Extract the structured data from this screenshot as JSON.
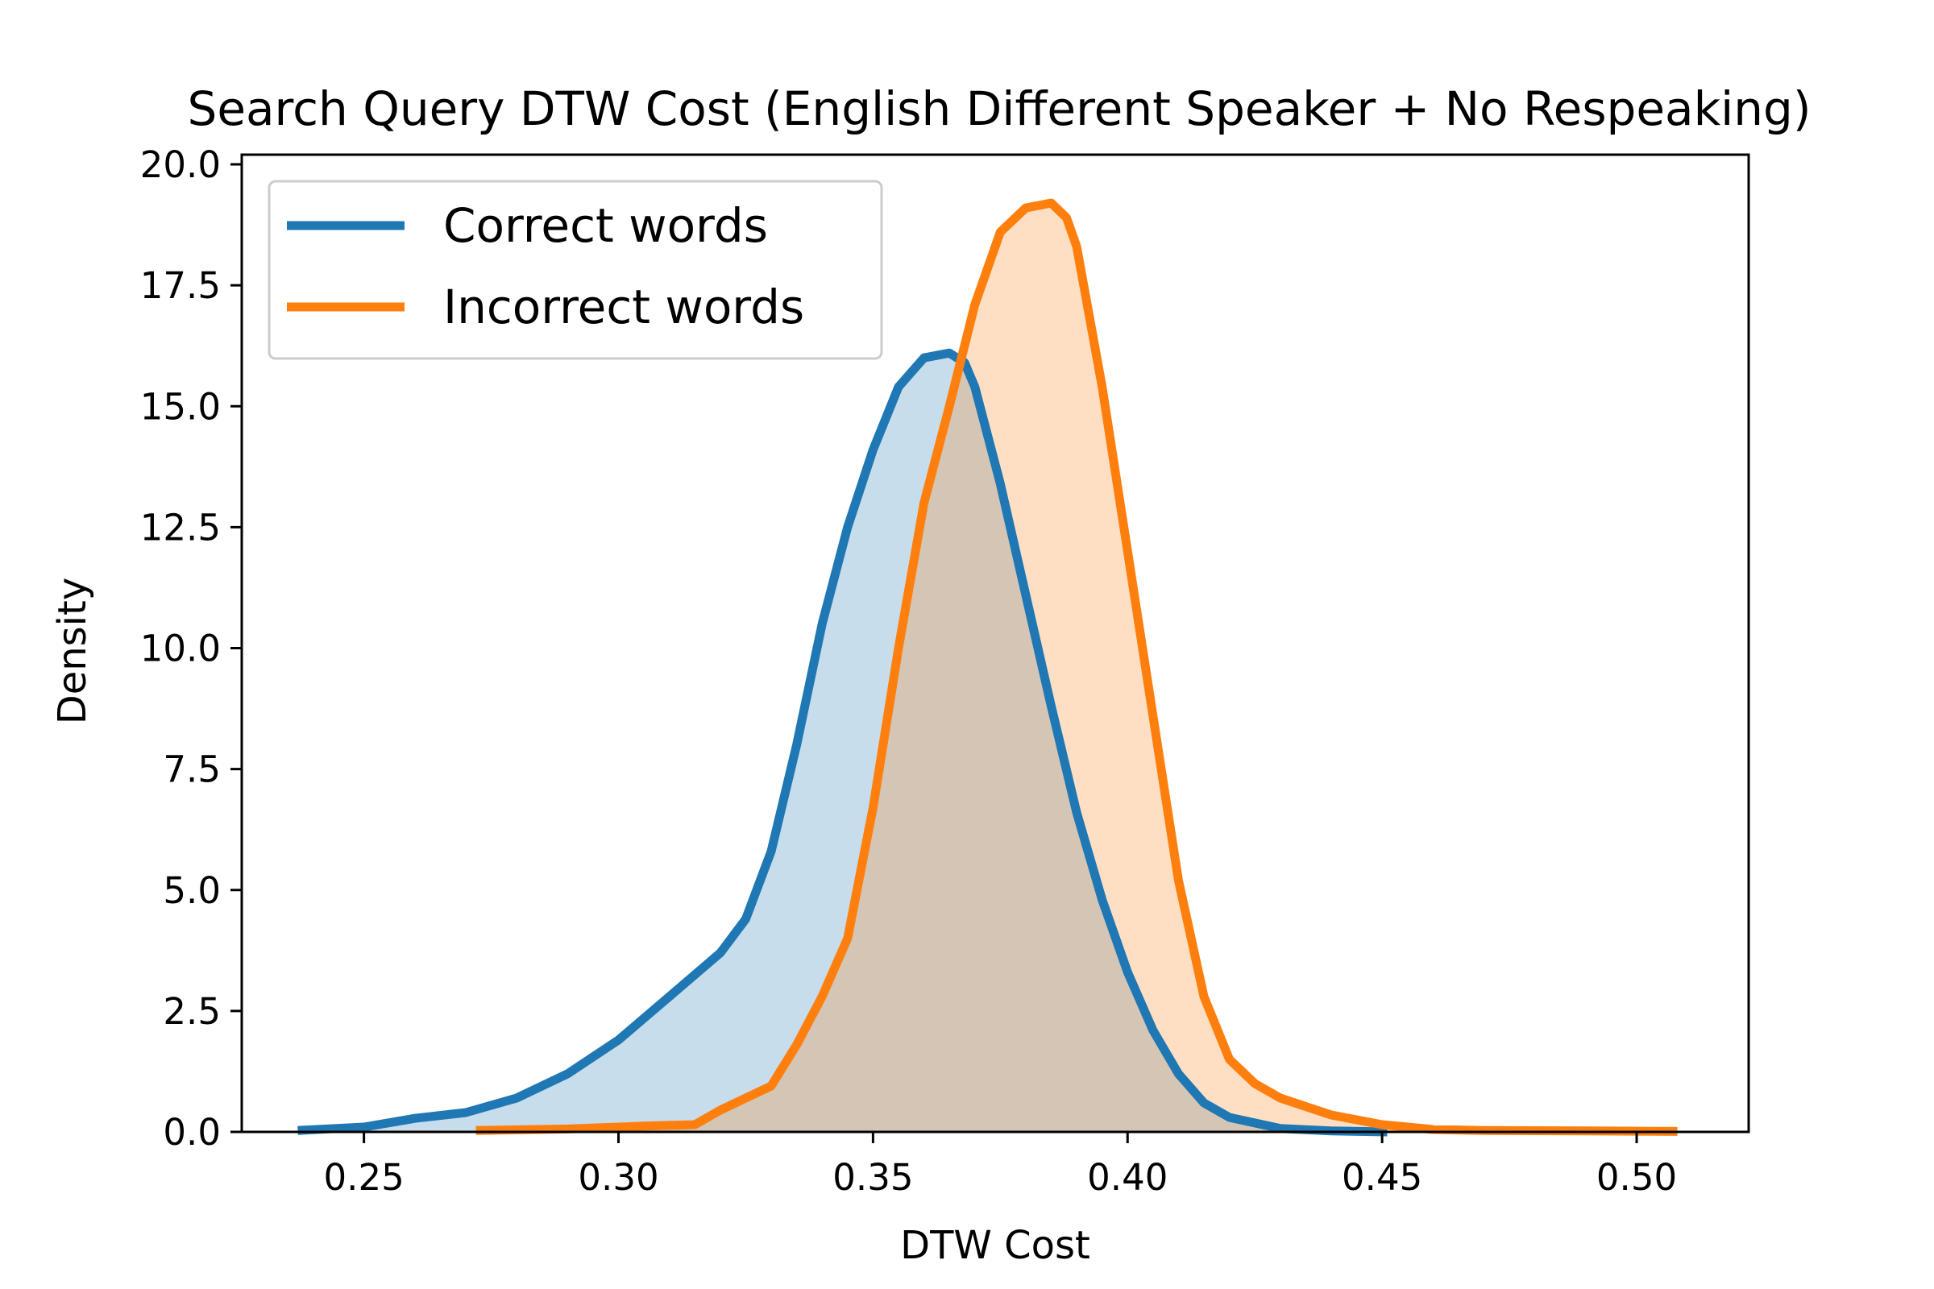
{
  "chart_data": {
    "type": "area",
    "title": "Search Query DTW Cost (English Different Speaker + No Respeaking)",
    "xlabel": "DTW Cost",
    "ylabel": "Density",
    "xlim": [
      0.226,
      0.522
    ],
    "ylim": [
      0,
      20.2
    ],
    "xticks": [
      0.25,
      0.3,
      0.35,
      0.4,
      0.45,
      0.5
    ],
    "xtick_labels": [
      "0.25",
      "0.30",
      "0.35",
      "0.40",
      "0.45",
      "0.50"
    ],
    "yticks": [
      0,
      2.5,
      5,
      7.5,
      10,
      12.5,
      15,
      17.5,
      20
    ],
    "ytick_labels": [
      "0.0",
      "2.5",
      "5.0",
      "7.5",
      "10.0",
      "12.5",
      "15.0",
      "17.5",
      "20.0"
    ],
    "grid": false,
    "legend_position": "top-left",
    "series": [
      {
        "name": "Correct words",
        "color": "#1f77b4",
        "x": [
          0.237,
          0.25,
          0.26,
          0.27,
          0.28,
          0.29,
          0.3,
          0.31,
          0.32,
          0.325,
          0.33,
          0.335,
          0.34,
          0.345,
          0.35,
          0.355,
          0.36,
          0.365,
          0.368,
          0.37,
          0.375,
          0.38,
          0.385,
          0.39,
          0.395,
          0.4,
          0.405,
          0.41,
          0.415,
          0.42,
          0.43,
          0.44,
          0.451
        ],
        "y": [
          0.03,
          0.1,
          0.28,
          0.4,
          0.7,
          1.2,
          1.9,
          2.8,
          3.7,
          4.4,
          5.8,
          8.0,
          10.5,
          12.5,
          14.1,
          15.4,
          16.0,
          16.1,
          15.9,
          15.4,
          13.4,
          11.1,
          8.8,
          6.6,
          4.8,
          3.3,
          2.1,
          1.2,
          0.6,
          0.3,
          0.07,
          0.02,
          0.0
        ]
      },
      {
        "name": "Incorrect words",
        "color": "#ff7f0e",
        "x": [
          0.272,
          0.29,
          0.305,
          0.315,
          0.32,
          0.325,
          0.33,
          0.335,
          0.34,
          0.345,
          0.35,
          0.355,
          0.36,
          0.365,
          0.37,
          0.375,
          0.38,
          0.385,
          0.388,
          0.39,
          0.395,
          0.4,
          0.405,
          0.41,
          0.415,
          0.42,
          0.425,
          0.43,
          0.44,
          0.45,
          0.46,
          0.47,
          0.49,
          0.508
        ],
        "y": [
          0.03,
          0.06,
          0.12,
          0.15,
          0.45,
          0.7,
          0.95,
          1.8,
          2.8,
          4.0,
          6.7,
          10.0,
          13.0,
          15.0,
          17.1,
          18.6,
          19.1,
          19.2,
          18.9,
          18.3,
          15.4,
          12.0,
          8.6,
          5.2,
          2.8,
          1.5,
          1.0,
          0.7,
          0.35,
          0.15,
          0.05,
          0.03,
          0.02,
          0.01
        ]
      }
    ]
  }
}
